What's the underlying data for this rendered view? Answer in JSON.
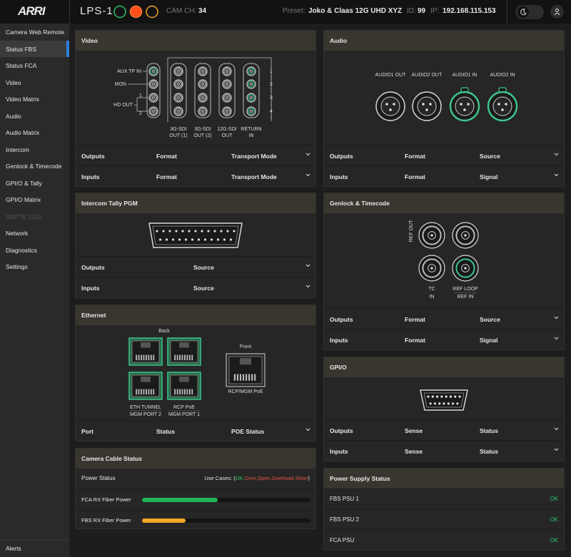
{
  "header": {
    "logo": "ARRI",
    "device": "LPS-1",
    "cam_ch_label": "CAM CH:",
    "cam_ch": 34,
    "preset_label": "Preset:",
    "preset": "Joko & Claas 12G UHD XYZ",
    "id_label": "ID:",
    "id": 99,
    "ip_label": "IP:",
    "ip": "192.168.115.153"
  },
  "nav": {
    "items": [
      "Camera Web Remote",
      "Status FBS",
      "Status FCA",
      "Video",
      "Video Matrix",
      "Audio",
      "Audio Matrix",
      "Intercom",
      "Genlock & Timecode",
      "GPI/O & Tally",
      "GPI/O Matrix",
      "SMPTE 2110",
      "Network",
      "Diagnostics",
      "Settings"
    ],
    "active": 1,
    "disabled": [
      11
    ],
    "footer": "Alerts"
  },
  "panels": [
    {
      "title": "Video",
      "rows": [
        [
          "Outputs",
          "Format",
          "Transport Mode"
        ],
        [
          "Inputs",
          "Format",
          "Transport Mode"
        ]
      ],
      "expandable": true,
      "diagram": {
        "aux_tp_in": "AUX TP IN",
        "mon": "MON",
        "hd_out": "HD OUT",
        "hd_ports": [
          "1",
          "2"
        ],
        "columns": [
          [
            "3G-SDI",
            "OUT (1)"
          ],
          [
            "3G-SDI",
            "OUT (2)"
          ],
          [
            "12G-SDI",
            "OUT"
          ],
          [
            "RETURN",
            "IN"
          ]
        ],
        "channels": [
          "1",
          "2",
          "3",
          "4"
        ]
      }
    },
    {
      "title": "Intercom Tally PGM",
      "rows": [
        [
          "Outputs",
          "Source"
        ],
        [
          "Inputs",
          "Source"
        ]
      ],
      "expandable": true
    },
    {
      "title": "Ethernet",
      "rows": [
        [
          "Port",
          "Status",
          "POE Status"
        ]
      ],
      "expandable": true,
      "diagram": {
        "back": "Back",
        "front": "Front",
        "back_ports": [
          [
            "ETH TUNNEL",
            "MGM PORT 2"
          ],
          [
            "RCP PoE",
            "MGM PORT 1"
          ]
        ],
        "front_port": "RCP/MGM PoE"
      }
    },
    {
      "title": "Camera Cable Status",
      "power_status": "Power Status",
      "use_cases_label": "Use Cases: (",
      "use_cases": [
        {
          "text": "OK,",
          "color": "#2fc26b"
        },
        {
          "text": "Over,",
          "color": "#e5533d"
        },
        {
          "text": "Open,",
          "color": "#e5533d"
        },
        {
          "text": "Overload,",
          "color": "#e5533d"
        },
        {
          "text": "Short",
          "color": "#e5533d"
        }
      ],
      "use_cases_close": ")",
      "fiber": [
        {
          "label": "FCA RX Fiber Power",
          "value": 45,
          "color": "#1fb45a"
        },
        {
          "label": "FBS RX Fiber Power",
          "value": 26,
          "color": "#f5a623"
        }
      ]
    },
    {
      "title": "Audio",
      "rows": [
        [
          "Outputs",
          "Format",
          "Source"
        ],
        [
          "Inputs",
          "Format",
          "Signal"
        ]
      ],
      "expandable": true,
      "diagram": {
        "connectors": [
          {
            "label": "AUDIO1  OUT",
            "input": false
          },
          {
            "label": "AUDIO2  OUT",
            "input": false
          },
          {
            "label": "AUDIO1  IN",
            "input": true
          },
          {
            "label": "AUDIO2  IN",
            "input": true
          }
        ]
      }
    },
    {
      "title": "Genlock & Timecode",
      "rows": [
        [
          "Outputs",
          "Format",
          "Source"
        ],
        [
          "Inputs",
          "Format",
          "Signal"
        ]
      ],
      "expandable": true,
      "diagram": {
        "ref_out": "REF OUT",
        "tc_in": [
          "TC",
          "IN"
        ],
        "ref_loop": "REF LOOP",
        "ref_in": "REF IN"
      }
    },
    {
      "title": "GPI/O",
      "rows": [
        [
          "Outputs",
          "Sense",
          "Status"
        ],
        [
          "Inputs",
          "Sense",
          "Status"
        ]
      ],
      "expandable": true
    },
    {
      "title": "Power Supply Status",
      "rows": [
        [
          "FBS PSU 1",
          "OK"
        ],
        [
          "FBS PSU 2",
          "OK"
        ],
        [
          "FCA PSU",
          "OK"
        ]
      ],
      "expandable": false,
      "status_color": "#2fc26b"
    }
  ]
}
